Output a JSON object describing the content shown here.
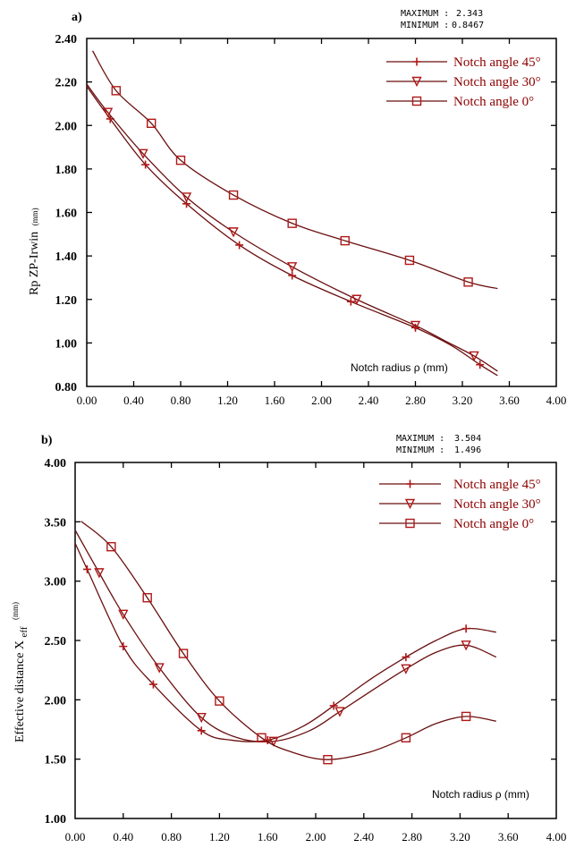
{
  "figure": {
    "colors": {
      "curve": "#6b0f0f",
      "marker": "#b01818",
      "legend_text": "#8b0000",
      "axis": "#000000"
    }
  },
  "chart_data": [
    {
      "id": "a",
      "type": "line",
      "panel_label": "a)",
      "stats": {
        "max_label": "MAXIMUM :",
        "max_value": "2.343",
        "min_label": "MINIMUM :",
        "min_value": "0.8467"
      },
      "xlabel": "Notch radius ρ (mm)",
      "ylabel_main": "Rp   ZP-Irwin",
      "ylabel_unit": "(mm)",
      "xlim": [
        0,
        4
      ],
      "ylim": [
        0.8,
        2.4
      ],
      "xticks": [
        "0.00",
        "0.40",
        "0.80",
        "1.20",
        "1.60",
        "2.00",
        "2.40",
        "2.80",
        "3.20",
        "3.60",
        "4.00"
      ],
      "yticks": [
        "0.80",
        "1.00",
        "1.20",
        "1.40",
        "1.60",
        "1.80",
        "2.00",
        "2.20",
        "2.40"
      ],
      "legend_position": "top-right",
      "series": [
        {
          "name": "Notch angle 45°",
          "marker": "plus",
          "curve_x": [
            0.0,
            0.2,
            0.5,
            0.85,
            1.3,
            1.75,
            2.25,
            2.8,
            3.1,
            3.35,
            3.5
          ],
          "curve_y": [
            2.18,
            2.03,
            1.82,
            1.64,
            1.45,
            1.31,
            1.19,
            1.07,
            0.99,
            0.9,
            0.85
          ],
          "markers_x": [
            0.2,
            0.5,
            0.85,
            1.3,
            1.75,
            2.25,
            2.8,
            3.35
          ],
          "markers_y": [
            2.03,
            1.82,
            1.64,
            1.45,
            1.31,
            1.19,
            1.07,
            0.9
          ]
        },
        {
          "name": "Notch angle 30°",
          "marker": "triangle-down",
          "curve_x": [
            0.0,
            0.18,
            0.48,
            0.85,
            1.25,
            1.75,
            2.3,
            2.8,
            3.05,
            3.3,
            3.5
          ],
          "curve_y": [
            2.19,
            2.06,
            1.87,
            1.67,
            1.51,
            1.35,
            1.2,
            1.08,
            1.01,
            0.94,
            0.87
          ],
          "markers_x": [
            0.18,
            0.48,
            0.85,
            1.25,
            1.75,
            2.3,
            2.8,
            3.3
          ],
          "markers_y": [
            2.06,
            1.87,
            1.67,
            1.51,
            1.35,
            1.2,
            1.08,
            0.94
          ]
        },
        {
          "name": "Notch angle  0°",
          "marker": "square",
          "curve_x": [
            0.05,
            0.25,
            0.55,
            0.8,
            1.25,
            1.75,
            2.2,
            2.75,
            3.25,
            3.5
          ],
          "curve_y": [
            2.343,
            2.16,
            2.01,
            1.84,
            1.68,
            1.55,
            1.47,
            1.38,
            1.28,
            1.25
          ],
          "markers_x": [
            0.25,
            0.55,
            0.8,
            1.25,
            1.75,
            2.2,
            2.75,
            3.25
          ],
          "markers_y": [
            2.16,
            2.01,
            1.84,
            1.68,
            1.55,
            1.47,
            1.38,
            1.28
          ]
        }
      ]
    },
    {
      "id": "b",
      "type": "line",
      "panel_label": "b)",
      "stats": {
        "max_label": "MAXIMUM :",
        "max_value": "3.504",
        "min_label": "MINIMUM :",
        "min_value": "1.496"
      },
      "xlabel": "Notch radius ρ (mm)",
      "ylabel_main": "Effective distance  X",
      "ylabel_sub": "eff",
      "ylabel_unit": "(mm)",
      "xlim": [
        0,
        4
      ],
      "ylim": [
        1.0,
        4.0
      ],
      "xticks": [
        "0.00",
        "0.40",
        "0.80",
        "1.20",
        "1.60",
        "2.00",
        "2.40",
        "2.80",
        "3.20",
        "3.60",
        "4.00"
      ],
      "yticks": [
        "1.00",
        "1.50",
        "2.00",
        "2.50",
        "3.00",
        "3.50",
        "4.00"
      ],
      "legend_position": "top-right",
      "series": [
        {
          "name": "Notch angle 45°",
          "marker": "plus",
          "curve_x": [
            0.0,
            0.1,
            0.4,
            0.65,
            1.05,
            1.3,
            1.6,
            1.9,
            2.15,
            2.45,
            2.75,
            3.0,
            3.25,
            3.5
          ],
          "curve_y": [
            3.32,
            3.1,
            2.45,
            2.13,
            1.74,
            1.66,
            1.66,
            1.78,
            1.95,
            2.17,
            2.36,
            2.5,
            2.6,
            2.57
          ],
          "markers_x": [
            0.1,
            0.4,
            0.65,
            1.05,
            1.6,
            2.15,
            2.75,
            3.25
          ],
          "markers_y": [
            3.1,
            2.45,
            2.13,
            1.74,
            1.66,
            1.95,
            2.36,
            2.6
          ]
        },
        {
          "name": "Notch angle 30°",
          "marker": "triangle-down",
          "curve_x": [
            0.0,
            0.2,
            0.4,
            0.7,
            1.05,
            1.35,
            1.65,
            1.95,
            2.2,
            2.5,
            2.75,
            3.0,
            3.25,
            3.5
          ],
          "curve_y": [
            3.43,
            3.07,
            2.72,
            2.27,
            1.85,
            1.68,
            1.65,
            1.74,
            1.9,
            2.1,
            2.26,
            2.4,
            2.46,
            2.36
          ],
          "markers_x": [
            0.2,
            0.4,
            0.7,
            1.05,
            1.65,
            2.2,
            2.75,
            3.25
          ],
          "markers_y": [
            3.07,
            2.72,
            2.27,
            1.85,
            1.65,
            1.9,
            2.26,
            2.46
          ]
        },
        {
          "name": "Notch angle  0°",
          "marker": "square",
          "curve_x": [
            0.05,
            0.3,
            0.6,
            0.9,
            1.2,
            1.55,
            1.8,
            2.1,
            2.45,
            2.75,
            3.0,
            3.25,
            3.5
          ],
          "curve_y": [
            3.504,
            3.29,
            2.86,
            2.39,
            1.99,
            1.68,
            1.56,
            1.496,
            1.56,
            1.68,
            1.8,
            1.86,
            1.82
          ],
          "markers_x": [
            0.3,
            0.6,
            0.9,
            1.2,
            1.55,
            2.1,
            2.75,
            3.25
          ],
          "markers_y": [
            3.29,
            2.86,
            2.39,
            1.99,
            1.68,
            1.496,
            1.68,
            1.86
          ]
        }
      ]
    }
  ]
}
